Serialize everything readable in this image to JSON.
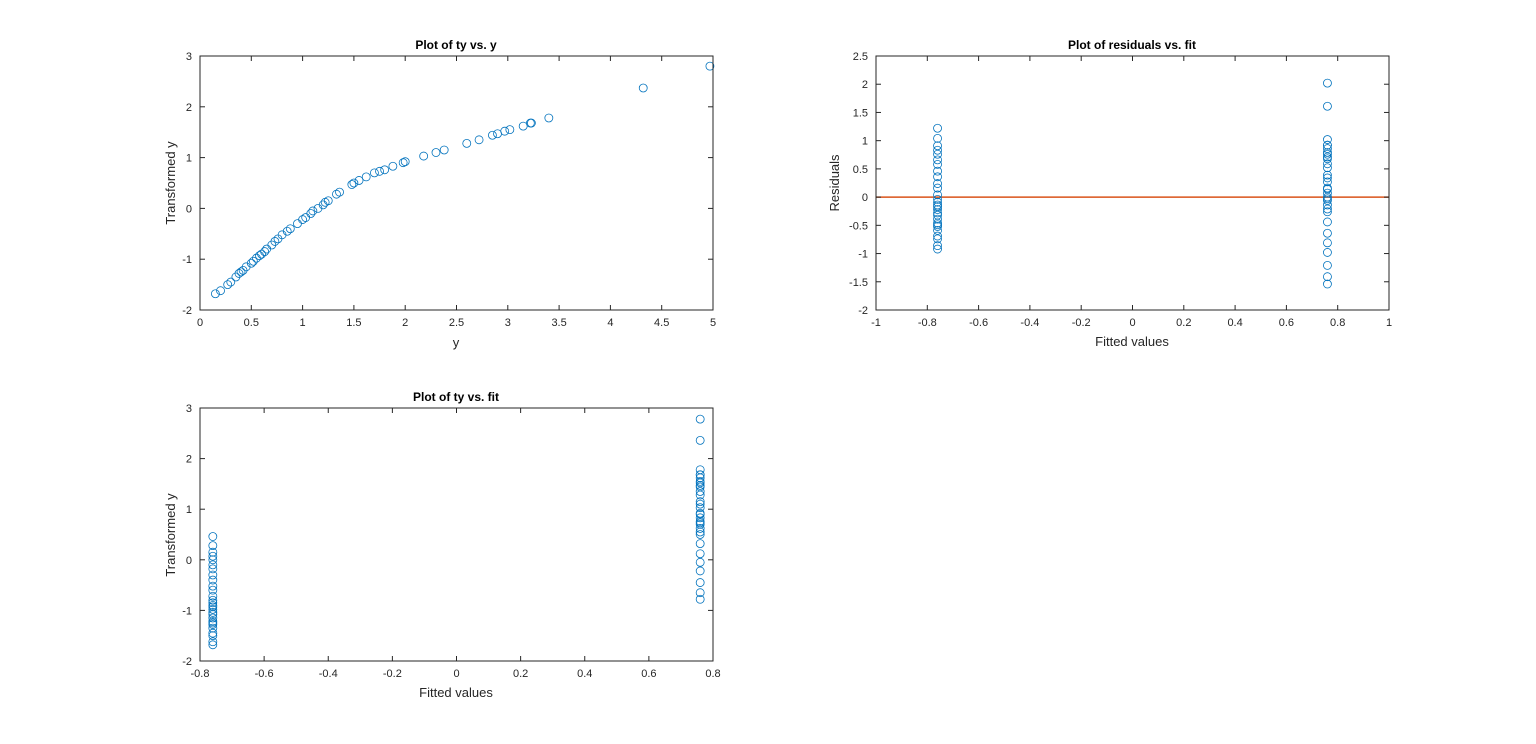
{
  "chart_data": [
    {
      "type": "scatter",
      "title": "Plot of ty vs. y",
      "xlabel": "y",
      "ylabel": "Transformed y",
      "xlim": [
        0,
        5
      ],
      "ylim": [
        -2,
        3
      ],
      "xticks": [
        "0",
        "0.5",
        "1",
        "1.5",
        "2",
        "2.5",
        "3",
        "3.5",
        "4",
        "4.5",
        "5"
      ],
      "yticks": [
        "-2",
        "-1",
        "0",
        "1",
        "2",
        "3"
      ],
      "grid": false,
      "marker_color": "#0072BD",
      "points": [
        [
          0.15,
          -1.68
        ],
        [
          0.2,
          -1.62
        ],
        [
          0.27,
          -1.5
        ],
        [
          0.3,
          -1.45
        ],
        [
          0.35,
          -1.35
        ],
        [
          0.38,
          -1.28
        ],
        [
          0.4,
          -1.25
        ],
        [
          0.42,
          -1.22
        ],
        [
          0.45,
          -1.15
        ],
        [
          0.5,
          -1.08
        ],
        [
          0.52,
          -1.04
        ],
        [
          0.55,
          -0.98
        ],
        [
          0.58,
          -0.93
        ],
        [
          0.6,
          -0.9
        ],
        [
          0.63,
          -0.85
        ],
        [
          0.65,
          -0.8
        ],
        [
          0.7,
          -0.72
        ],
        [
          0.73,
          -0.65
        ],
        [
          0.76,
          -0.6
        ],
        [
          0.8,
          -0.52
        ],
        [
          0.85,
          -0.45
        ],
        [
          0.88,
          -0.4
        ],
        [
          0.95,
          -0.3
        ],
        [
          1.0,
          -0.22
        ],
        [
          1.03,
          -0.18
        ],
        [
          1.08,
          -0.1
        ],
        [
          1.1,
          -0.05
        ],
        [
          1.15,
          0.0
        ],
        [
          1.2,
          0.07
        ],
        [
          1.22,
          0.12
        ],
        [
          1.25,
          0.15
        ],
        [
          1.33,
          0.28
        ],
        [
          1.36,
          0.32
        ],
        [
          1.48,
          0.47
        ],
        [
          1.5,
          0.5
        ],
        [
          1.55,
          0.55
        ],
        [
          1.62,
          0.62
        ],
        [
          1.7,
          0.7
        ],
        [
          1.75,
          0.73
        ],
        [
          1.8,
          0.76
        ],
        [
          1.88,
          0.83
        ],
        [
          1.98,
          0.9
        ],
        [
          2.0,
          0.92
        ],
        [
          2.18,
          1.03
        ],
        [
          2.3,
          1.1
        ],
        [
          2.38,
          1.15
        ],
        [
          2.6,
          1.28
        ],
        [
          2.72,
          1.35
        ],
        [
          2.85,
          1.44
        ],
        [
          2.9,
          1.47
        ],
        [
          2.97,
          1.52
        ],
        [
          3.02,
          1.55
        ],
        [
          3.15,
          1.62
        ],
        [
          3.22,
          1.68
        ],
        [
          3.23,
          1.68
        ],
        [
          3.4,
          1.78
        ],
        [
          4.32,
          2.37
        ],
        [
          4.97,
          2.8
        ]
      ]
    },
    {
      "type": "scatter",
      "title": "Plot of residuals vs. fit",
      "xlabel": "Fitted values",
      "ylabel": "Residuals",
      "xlim": [
        -1,
        1
      ],
      "ylim": [
        -2,
        2.5
      ],
      "xticks": [
        "-1",
        "-0.8",
        "-0.6",
        "-0.4",
        "-0.2",
        "0",
        "0.2",
        "0.4",
        "0.6",
        "0.8",
        "1"
      ],
      "yticks": [
        "-2",
        "-1.5",
        "-1",
        "-0.5",
        "0",
        "0.5",
        "1",
        "1.5",
        "2",
        "2.5"
      ],
      "grid": false,
      "marker_color": "#0072BD",
      "reference_line": {
        "y": 0,
        "color": "#D95319"
      },
      "groups": [
        {
          "fit": -0.76,
          "residuals": [
            -0.92,
            -0.86,
            -0.74,
            -0.69,
            -0.59,
            -0.52,
            -0.49,
            -0.46,
            -0.39,
            -0.32,
            -0.28,
            -0.22,
            -0.17,
            -0.14,
            -0.09,
            -0.04,
            0.04,
            0.16,
            0.24,
            0.36,
            0.46,
            0.58,
            0.66,
            0.76,
            0.83,
            0.91,
            1.04,
            1.22
          ]
        },
        {
          "fit": 0.76,
          "residuals": [
            -1.54,
            -1.41,
            -1.21,
            -0.98,
            -0.81,
            -0.64,
            -0.44,
            -0.26,
            -0.21,
            -0.14,
            -0.06,
            -0.03,
            0.0,
            0.07,
            0.14,
            0.16,
            0.27,
            0.34,
            0.39,
            0.52,
            0.59,
            0.68,
            0.71,
            0.76,
            0.79,
            0.86,
            0.92,
            0.92,
            1.02,
            1.61,
            2.02
          ]
        }
      ]
    },
    {
      "type": "scatter",
      "title": "Plot of ty vs. fit",
      "xlabel": "Fitted values",
      "ylabel": "Transformed y",
      "xlim": [
        -0.8,
        0.8
      ],
      "ylim": [
        -2,
        3
      ],
      "xticks": [
        "-0.8",
        "-0.6",
        "-0.4",
        "-0.2",
        "0",
        "0.2",
        "0.4",
        "0.6",
        "0.8"
      ],
      "yticks": [
        "-2",
        "-1",
        "0",
        "1",
        "2",
        "3"
      ],
      "grid": false,
      "marker_color": "#0072BD",
      "groups": [
        {
          "fit": -0.76,
          "ty": [
            -1.68,
            -1.62,
            -1.5,
            -1.45,
            -1.35,
            -1.28,
            -1.25,
            -1.22,
            -1.15,
            -1.08,
            -1.04,
            -0.98,
            -0.93,
            -0.9,
            -0.85,
            -0.8,
            -0.72,
            -0.6,
            -0.52,
            -0.4,
            -0.3,
            -0.18,
            -0.1,
            0.0,
            0.07,
            0.15,
            0.28,
            0.46
          ]
        },
        {
          "fit": 0.76,
          "ty": [
            -0.78,
            -0.65,
            -0.45,
            -0.22,
            -0.05,
            0.12,
            0.32,
            0.5,
            0.55,
            0.62,
            0.7,
            0.73,
            0.76,
            0.83,
            0.9,
            0.92,
            1.03,
            1.1,
            1.15,
            1.28,
            1.35,
            1.44,
            1.47,
            1.52,
            1.55,
            1.62,
            1.68,
            1.68,
            1.78,
            2.36,
            2.78
          ]
        }
      ]
    }
  ]
}
